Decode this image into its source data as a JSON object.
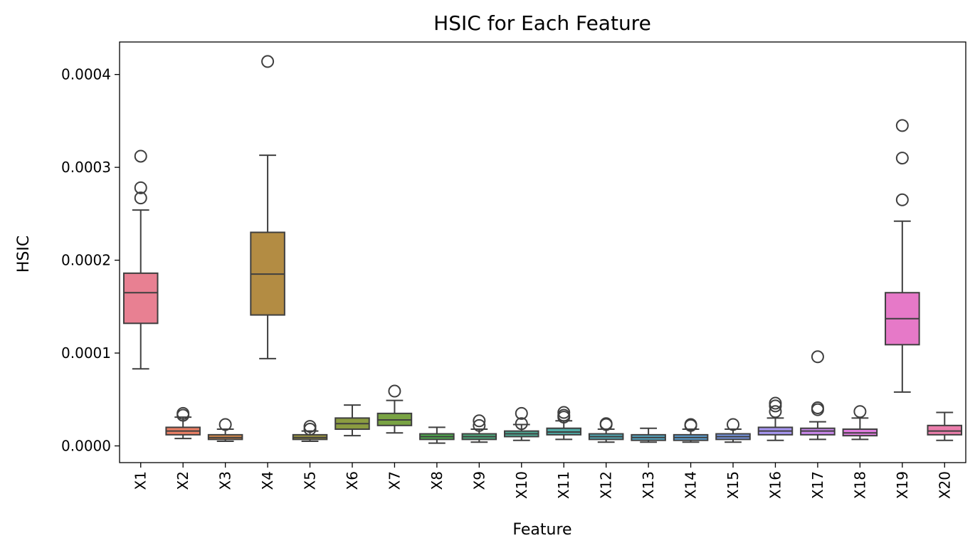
{
  "chart_data": {
    "type": "box",
    "title": "HSIC for Each Feature",
    "xlabel": "Feature",
    "ylabel": "HSIC",
    "ylim": [
      -1.8e-05,
      0.000435
    ],
    "yticks": [
      {
        "value": 0.0,
        "label": "0.0000"
      },
      {
        "value": 0.0001,
        "label": "0.0001"
      },
      {
        "value": 0.0002,
        "label": "0.0002"
      },
      {
        "value": 0.0003,
        "label": "0.0003"
      },
      {
        "value": 0.0004,
        "label": "0.0004"
      }
    ],
    "grid": false,
    "series": [
      {
        "category": "X1",
        "color": "#e88092",
        "whisker_low": 8.3e-05,
        "q1": 0.000132,
        "median": 0.000165,
        "q3": 0.000186,
        "whisker_high": 0.000254,
        "outliers": [
          0.000267,
          0.000278,
          0.000312
        ]
      },
      {
        "category": "X2",
        "color": "#ea7f65",
        "whisker_low": 8e-06,
        "q1": 1.2e-05,
        "median": 1.6e-05,
        "q3": 2e-05,
        "whisker_high": 3.1e-05,
        "outliers": [
          3.3e-05,
          3.5e-05
        ]
      },
      {
        "category": "X3",
        "color": "#d98c4d",
        "whisker_low": 5e-06,
        "q1": 7e-06,
        "median": 9e-06,
        "q3": 1.2e-05,
        "whisker_high": 1.8e-05,
        "outliers": [
          2.3e-05
        ]
      },
      {
        "category": "X4",
        "color": "#b38c43",
        "whisker_low": 9.4e-05,
        "q1": 0.000141,
        "median": 0.000185,
        "q3": 0.00023,
        "whisker_high": 0.000313,
        "outliers": [
          0.000414
        ]
      },
      {
        "category": "X5",
        "color": "#9e9641",
        "whisker_low": 5e-06,
        "q1": 7e-06,
        "median": 9e-06,
        "q3": 1.2e-05,
        "whisker_high": 1.6e-05,
        "outliers": [
          1.8e-05,
          2.1e-05
        ]
      },
      {
        "category": "X6",
        "color": "#8b9c41",
        "whisker_low": 1.1e-05,
        "q1": 1.8e-05,
        "median": 2.4e-05,
        "q3": 3e-05,
        "whisker_high": 4.4e-05,
        "outliers": []
      },
      {
        "category": "X7",
        "color": "#79a343",
        "whisker_low": 1.4e-05,
        "q1": 2.2e-05,
        "median": 2.8e-05,
        "q3": 3.5e-05,
        "whisker_high": 4.9e-05,
        "outliers": [
          5.9e-05
        ]
      },
      {
        "category": "X8",
        "color": "#4faf4e",
        "whisker_low": 3e-06,
        "q1": 7e-06,
        "median": 1e-05,
        "q3": 1.3e-05,
        "whisker_high": 2e-05,
        "outliers": []
      },
      {
        "category": "X9",
        "color": "#4eac7d",
        "whisker_low": 4e-06,
        "q1": 7e-06,
        "median": 1e-05,
        "q3": 1.3e-05,
        "whisker_high": 1.8e-05,
        "outliers": [
          2.2e-05,
          2.7e-05
        ]
      },
      {
        "category": "X10",
        "color": "#4eab95",
        "whisker_low": 6e-06,
        "q1": 1e-05,
        "median": 1.3e-05,
        "q3": 1.6e-05,
        "whisker_high": 2.3e-05,
        "outliers": [
          2.4e-05,
          3.5e-05
        ]
      },
      {
        "category": "X11",
        "color": "#4faaa5",
        "whisker_low": 7e-06,
        "q1": 1.2e-05,
        "median": 1.5e-05,
        "q3": 1.9e-05,
        "whisker_high": 2.7e-05,
        "outliers": [
          3.1e-05,
          3.3e-05,
          3.6e-05
        ]
      },
      {
        "category": "X12",
        "color": "#51a9b4",
        "whisker_low": 4e-06,
        "q1": 7e-06,
        "median": 1e-05,
        "q3": 1.3e-05,
        "whisker_high": 1.8e-05,
        "outliers": [
          2.3e-05,
          2.4e-05
        ]
      },
      {
        "category": "X13",
        "color": "#55a7c3",
        "whisker_low": 4e-06,
        "q1": 6e-06,
        "median": 9e-06,
        "q3": 1.2e-05,
        "whisker_high": 1.9e-05,
        "outliers": []
      },
      {
        "category": "X14",
        "color": "#5ea2d5",
        "whisker_low": 4e-06,
        "q1": 6e-06,
        "median": 9e-06,
        "q3": 1.2e-05,
        "whisker_high": 1.8e-05,
        "outliers": [
          2.2e-05,
          2.3e-05
        ]
      },
      {
        "category": "X15",
        "color": "#7898e5",
        "whisker_low": 4e-06,
        "q1": 7e-06,
        "median": 1e-05,
        "q3": 1.3e-05,
        "whisker_high": 1.8e-05,
        "outliers": [
          2.3e-05
        ]
      },
      {
        "category": "X16",
        "color": "#a796f0",
        "whisker_low": 6e-06,
        "q1": 1.2e-05,
        "median": 1.6e-05,
        "q3": 2e-05,
        "whisker_high": 3e-05,
        "outliers": [
          3.7e-05,
          4.3e-05,
          4.6e-05
        ]
      },
      {
        "category": "X17",
        "color": "#c887ea",
        "whisker_low": 7e-06,
        "q1": 1.2e-05,
        "median": 1.6e-05,
        "q3": 1.9e-05,
        "whisker_high": 2.6e-05,
        "outliers": [
          3.9e-05,
          4.1e-05,
          9.6e-05
        ]
      },
      {
        "category": "X18",
        "color": "#e17ee0",
        "whisker_low": 7e-06,
        "q1": 1.1e-05,
        "median": 1.4e-05,
        "q3": 1.8e-05,
        "whisker_high": 3e-05,
        "outliers": [
          3.7e-05
        ]
      },
      {
        "category": "X19",
        "color": "#e679c8",
        "whisker_low": 5.8e-05,
        "q1": 0.000109,
        "median": 0.000137,
        "q3": 0.000165,
        "whisker_high": 0.000242,
        "outliers": [
          0.000265,
          0.00031,
          0.000345
        ]
      },
      {
        "category": "X20",
        "color": "#ea7dab",
        "whisker_low": 6e-06,
        "q1": 1.2e-05,
        "median": 1.6e-05,
        "q3": 2.2e-05,
        "whisker_high": 3.6e-05,
        "outliers": []
      }
    ]
  }
}
